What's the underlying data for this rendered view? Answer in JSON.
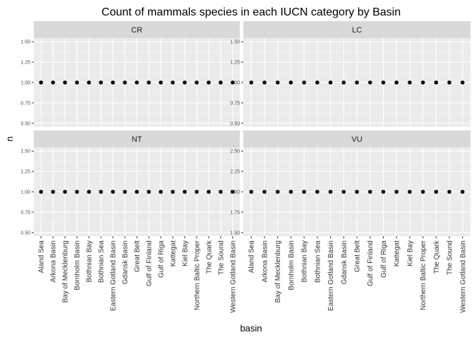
{
  "chart_data": {
    "type": "scatter",
    "title": "Count of mammals species in each IUCN category by Basin",
    "xlabel": "basin",
    "ylabel": "n",
    "categories": [
      "Aland Sea",
      "Arkona Basin",
      "Bay of Mecklenburg",
      "Bornholm Basin",
      "Bothnian Bay",
      "Bothnian Sea",
      "Eastern Gotland Basin",
      "Gdansk Basin",
      "Great Belt",
      "Gulf of Finland",
      "Gulf of Riga",
      "Kattegat",
      "Kiel Bay",
      "Northern Baltic Proper",
      "The Quark",
      "The Sound",
      "Western Gotland Basin"
    ],
    "panels": [
      {
        "facet": "CR",
        "ylim": [
          0.5,
          1.5
        ],
        "yticks": [
          "0.50",
          "0.75",
          "1.00",
          "1.25",
          "1.50"
        ],
        "values": [
          1,
          1,
          1,
          1,
          1,
          1,
          1,
          1,
          1,
          1,
          1,
          1,
          1,
          1,
          1,
          1,
          1
        ]
      },
      {
        "facet": "LC",
        "ylim": [
          0.5,
          1.5
        ],
        "yticks": [
          "0.50",
          "0.75",
          "1.00",
          "1.25",
          "1.50"
        ],
        "values": [
          1,
          1,
          1,
          1,
          1,
          1,
          1,
          1,
          1,
          1,
          1,
          1,
          1,
          1,
          1,
          1,
          1
        ]
      },
      {
        "facet": "NT",
        "ylim": [
          0.5,
          1.5
        ],
        "yticks": [
          "0.50",
          "0.75",
          "1.00",
          "1.25",
          "1.50"
        ],
        "values": [
          1,
          1,
          1,
          1,
          1,
          1,
          1,
          1,
          1,
          1,
          1,
          1,
          1,
          1,
          1,
          1,
          1
        ]
      },
      {
        "facet": "VU",
        "ylim": [
          1.5,
          2.5
        ],
        "yticks": [
          "1.50",
          "1.75",
          "2.00",
          "2.25",
          "2.50"
        ],
        "values": [
          2,
          2,
          2,
          2,
          2,
          2,
          2,
          2,
          2,
          2,
          2,
          2,
          2,
          2,
          2,
          2,
          2
        ]
      }
    ],
    "grid": true,
    "legend": "none"
  }
}
